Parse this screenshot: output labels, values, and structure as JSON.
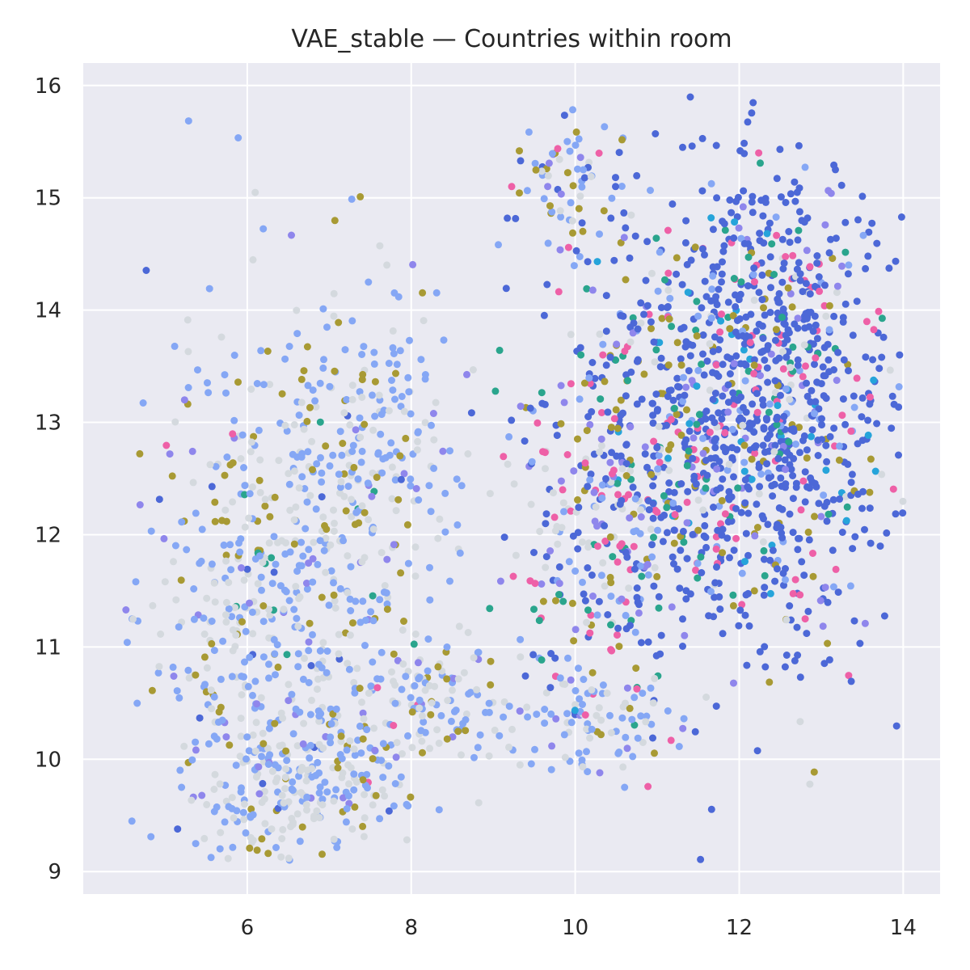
{
  "chart_data": {
    "type": "scatter",
    "title": "VAE_stable — Countries within room",
    "xlabel": "",
    "ylabel": "",
    "xlim": [
      4.0,
      14.45
    ],
    "ylim": [
      8.8,
      16.2
    ],
    "xticks": [
      "6",
      "8",
      "10",
      "12",
      "14"
    ],
    "yticks": [
      "9",
      "10",
      "11",
      "12",
      "13",
      "14",
      "15",
      "16"
    ],
    "grid": true,
    "legend": "none",
    "colors": {
      "background": "#eaeaf2",
      "grid": "#ffffff",
      "palette": [
        "#4c68d7",
        "#85a7f5",
        "#d4d9de",
        "#a89a34",
        "#8f86ec",
        "#ee60a7",
        "#2aa58d",
        "#26a4da",
        "#f2c9b5",
        "#c79940"
      ]
    },
    "series_summary": "Approximately 3000 points forming two lobes; left lobe x 4.5–8.3 (light blue/grey/olive), right lobe x 8.8–14 (dense dark blue with pink/teal/olive)",
    "clusters": [
      {
        "cx": 12.4,
        "cy": 13.3,
        "sx": 0.75,
        "sy": 1.05,
        "n": 850,
        "w": [
          0.7,
          0.05,
          0.03,
          0.06,
          0.04,
          0.06,
          0.04,
          0.02
        ]
      },
      {
        "cx": 11.2,
        "cy": 12.8,
        "sx": 0.9,
        "sy": 1.1,
        "n": 450,
        "w": [
          0.45,
          0.08,
          0.06,
          0.08,
          0.08,
          0.13,
          0.08,
          0.04
        ]
      },
      {
        "cx": 10.2,
        "cy": 12.0,
        "sx": 0.55,
        "sy": 0.8,
        "n": 200,
        "w": [
          0.2,
          0.18,
          0.14,
          0.1,
          0.1,
          0.16,
          0.1,
          0.02
        ]
      },
      {
        "cx": 10.0,
        "cy": 15.2,
        "sx": 0.4,
        "sy": 0.3,
        "n": 70,
        "w": [
          0.15,
          0.4,
          0.15,
          0.15,
          0.1,
          0.05,
          0.0,
          0.0
        ]
      },
      {
        "cx": 10.1,
        "cy": 10.3,
        "sx": 0.45,
        "sy": 0.25,
        "n": 80,
        "w": [
          0.05,
          0.45,
          0.4,
          0.05,
          0.05,
          0.0,
          0.0,
          0.0
        ]
      },
      {
        "cx": 6.6,
        "cy": 11.3,
        "sx": 1.0,
        "sy": 1.3,
        "n": 700,
        "w": [
          0.02,
          0.45,
          0.34,
          0.12,
          0.05,
          0.01,
          0.01,
          0.0
        ]
      },
      {
        "cx": 7.5,
        "cy": 13.0,
        "sx": 0.5,
        "sy": 0.55,
        "n": 140,
        "w": [
          0.02,
          0.5,
          0.3,
          0.14,
          0.04,
          0.0,
          0.0,
          0.0
        ]
      },
      {
        "cx": 6.7,
        "cy": 9.8,
        "sx": 0.6,
        "sy": 0.35,
        "n": 180,
        "w": [
          0.02,
          0.4,
          0.4,
          0.12,
          0.06,
          0.0,
          0.0,
          0.0
        ]
      },
      {
        "cx": 8.4,
        "cy": 10.5,
        "sx": 0.5,
        "sy": 0.25,
        "n": 90,
        "w": [
          0.05,
          0.4,
          0.35,
          0.1,
          0.05,
          0.05,
          0.0,
          0.0
        ]
      }
    ]
  }
}
